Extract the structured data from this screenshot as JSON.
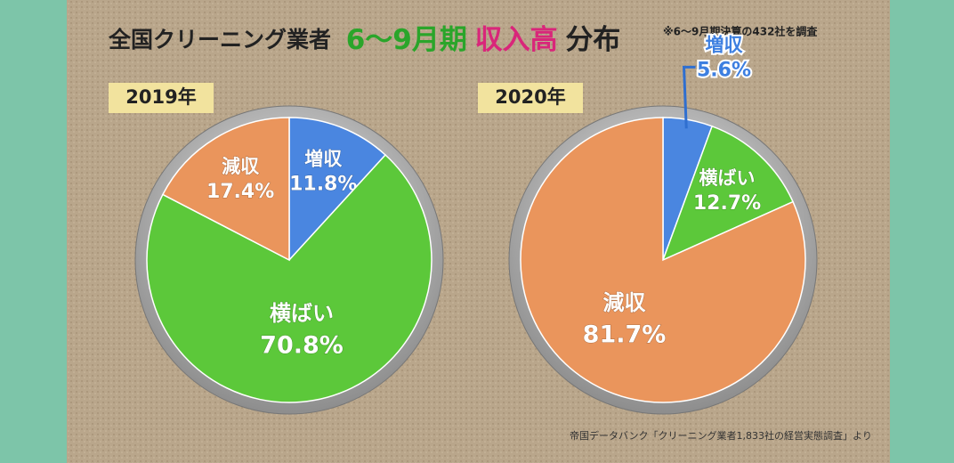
{
  "title": [
    "全国クリーニング業者",
    "6〜9月期",
    "収入高",
    "分布"
  ],
  "note": "※6〜9月期決算の432社を調査",
  "source": "帝国データバンク「クリーニング業者1,833社の経営実態調査」より",
  "chart_data": [
    {
      "type": "pie",
      "title": "2019年",
      "categories": [
        "増収",
        "横ばい",
        "減収"
      ],
      "values": [
        11.8,
        70.8,
        17.4
      ],
      "value_labels": [
        "11.8%",
        "70.8%",
        "17.4%"
      ],
      "colors": [
        "#4a86e0",
        "#5cc83a",
        "#ea955c"
      ]
    },
    {
      "type": "pie",
      "title": "2020年",
      "categories": [
        "増収",
        "横ばい",
        "減収"
      ],
      "values": [
        5.6,
        12.7,
        81.7
      ],
      "value_labels": [
        "5.6%",
        "12.7%",
        "81.7%"
      ],
      "colors": [
        "#4a86e0",
        "#5cc83a",
        "#ea955c"
      ]
    }
  ]
}
